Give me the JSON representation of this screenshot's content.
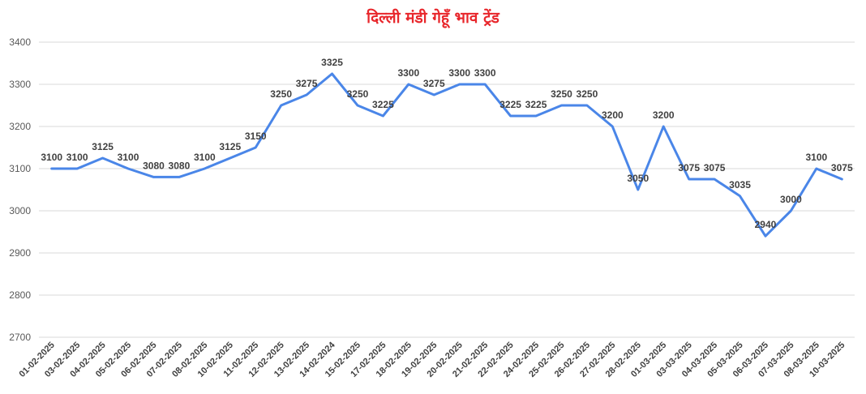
{
  "chart_data": {
    "type": "line",
    "title": "दिल्ली मंडी गेहूँ भाव ट्रेंड",
    "xlabel": "",
    "ylabel": "",
    "ylim": [
      2700,
      3400
    ],
    "yticks": [
      "2700",
      "2800",
      "2900",
      "3000",
      "3100",
      "3200",
      "3300",
      "3400"
    ],
    "grid": true,
    "legend": "none",
    "line_color": "#4a86e8",
    "categories": [
      "01-02-2025",
      "03-02-2025",
      "04-02-2025",
      "05-02-2025",
      "06-02-2025",
      "07-02-2025",
      "08-02-2025",
      "10-02-2025",
      "11-02-2025",
      "12-02-2025",
      "13-02-2025",
      "14-02-2024",
      "15-02-2025",
      "17-02-2025",
      "18-02-2025",
      "19-02-2025",
      "20-02-2025",
      "21-02-2025",
      "22-02-2025",
      "24-02-2025",
      "25-02-2025",
      "26-02-2025",
      "27-02-2025",
      "28-02-2025",
      "01-03-2025",
      "03-03-2025",
      "04-03-2025",
      "05-03-2025",
      "06-03-2025",
      "07-03-2025",
      "08-03-2025",
      "10-03-2025"
    ],
    "values": [
      3100,
      3100,
      3125,
      3100,
      3080,
      3080,
      3100,
      3125,
      3150,
      3250,
      3275,
      3325,
      3250,
      3225,
      3300,
      3275,
      3300,
      3300,
      3225,
      3225,
      3250,
      3250,
      3200,
      3050,
      3200,
      3075,
      3075,
      3035,
      2940,
      3000,
      3100,
      3075
    ]
  }
}
